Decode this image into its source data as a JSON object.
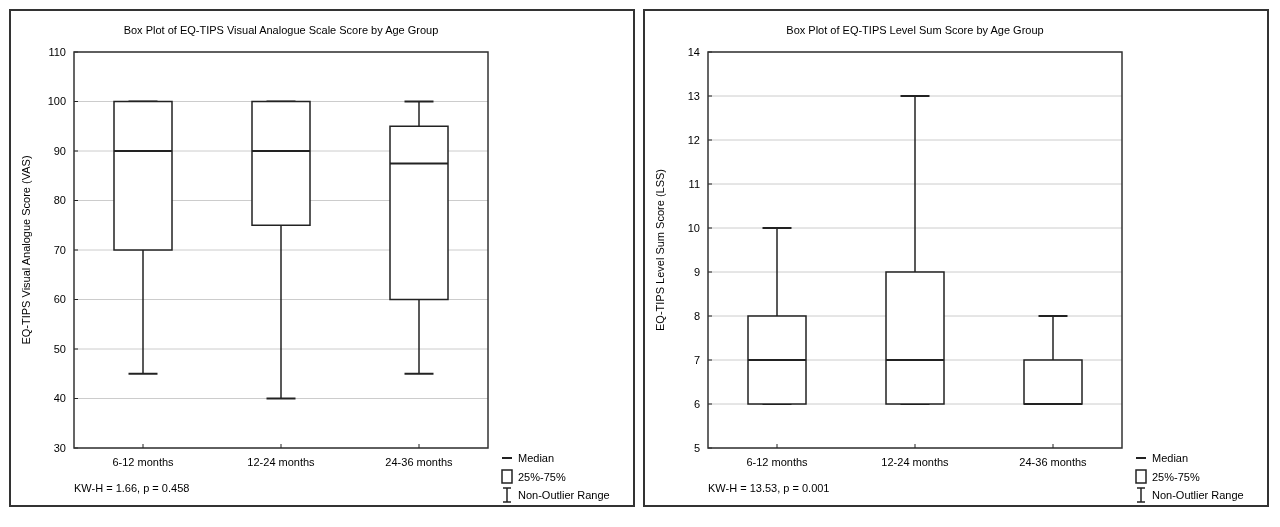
{
  "chart_data": [
    {
      "type": "box",
      "title": "Box Plot of EQ-TIPS Visual Analogue Scale Score by Age Group",
      "ylabel": "EQ-TIPS Visual Analogue Score (VAS)",
      "categories": [
        "6-12 months",
        "12-24 months",
        "24-36 months"
      ],
      "boxes": [
        {
          "low": 45,
          "q1": 70,
          "median": 90,
          "q3": 100,
          "high": 100
        },
        {
          "low": 40,
          "q1": 75,
          "median": 90,
          "q3": 100,
          "high": 100
        },
        {
          "low": 45,
          "q1": 60,
          "median": 87.5,
          "q3": 95,
          "high": 100
        }
      ],
      "ylim": [
        30,
        110
      ],
      "yticks": [
        30,
        40,
        50,
        60,
        70,
        80,
        90,
        100,
        110
      ],
      "grid": "y",
      "annotations": [
        "KW-H = 1.66, p = 0.458",
        "Median",
        "25%-75%",
        "Non-Outlier Range"
      ]
    },
    {
      "type": "box",
      "title": "Box Plot of EQ-TIPS Level Sum Score by Age Group",
      "ylabel": "EQ-TIPS Level Sum Score (LSS)",
      "categories": [
        "6-12 months",
        "12-24 months",
        "24-36 months"
      ],
      "boxes": [
        {
          "low": 6,
          "q1": 6,
          "median": 7,
          "q3": 8,
          "high": 10
        },
        {
          "low": 6,
          "q1": 6,
          "median": 7,
          "q3": 9,
          "high": 13
        },
        {
          "low": 6,
          "q1": 6,
          "median": 6,
          "q3": 7,
          "high": 8
        }
      ],
      "ylim": [
        5,
        14
      ],
      "yticks": [
        5,
        6,
        7,
        8,
        9,
        10,
        11,
        12,
        13,
        14
      ],
      "grid": "y",
      "annotations": [
        "KW-H = 13.53, p = 0.001",
        "Median",
        "25%-75%",
        "Non-Outlier Range"
      ]
    }
  ]
}
